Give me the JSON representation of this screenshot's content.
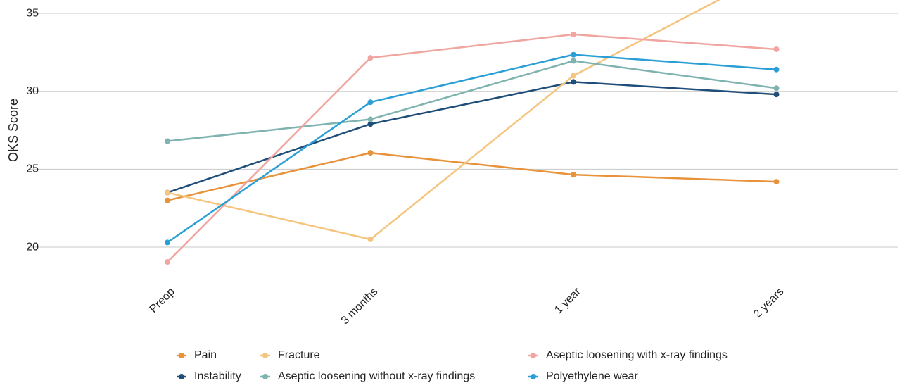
{
  "chart_data": {
    "type": "line",
    "y_label": "OKS Score",
    "categories": [
      "Preop",
      "3 months",
      "1 year",
      "2 years"
    ],
    "ylim": [
      18,
      35.86
    ],
    "yticks": [
      20,
      25,
      30,
      35
    ],
    "grid": true,
    "legend": "bottom",
    "series": [
      {
        "name": "Pain",
        "color": "#e8923a",
        "values": [
          23.0,
          26.05,
          24.65,
          24.2
        ]
      },
      {
        "name": "Instability",
        "color": "#1f4e79",
        "values": [
          23.5,
          27.9,
          30.6,
          29.8
        ]
      },
      {
        "name": "Fracture",
        "color": "#f5c57f",
        "values": [
          23.5,
          20.5,
          31.0,
          37.8
        ]
      },
      {
        "name": "Aseptic loosening without x-ray findings",
        "color": "#7fb3b0",
        "values": [
          26.8,
          28.2,
          31.95,
          30.2
        ]
      },
      {
        "name": "Aseptic loosening with x-ray findings",
        "color": "#f0a5a0",
        "values": [
          19.05,
          32.15,
          33.65,
          32.7
        ]
      },
      {
        "name": "Polyethylene wear",
        "color": "#2a9fd6",
        "values": [
          20.3,
          29.3,
          32.35,
          31.4
        ]
      }
    ]
  }
}
